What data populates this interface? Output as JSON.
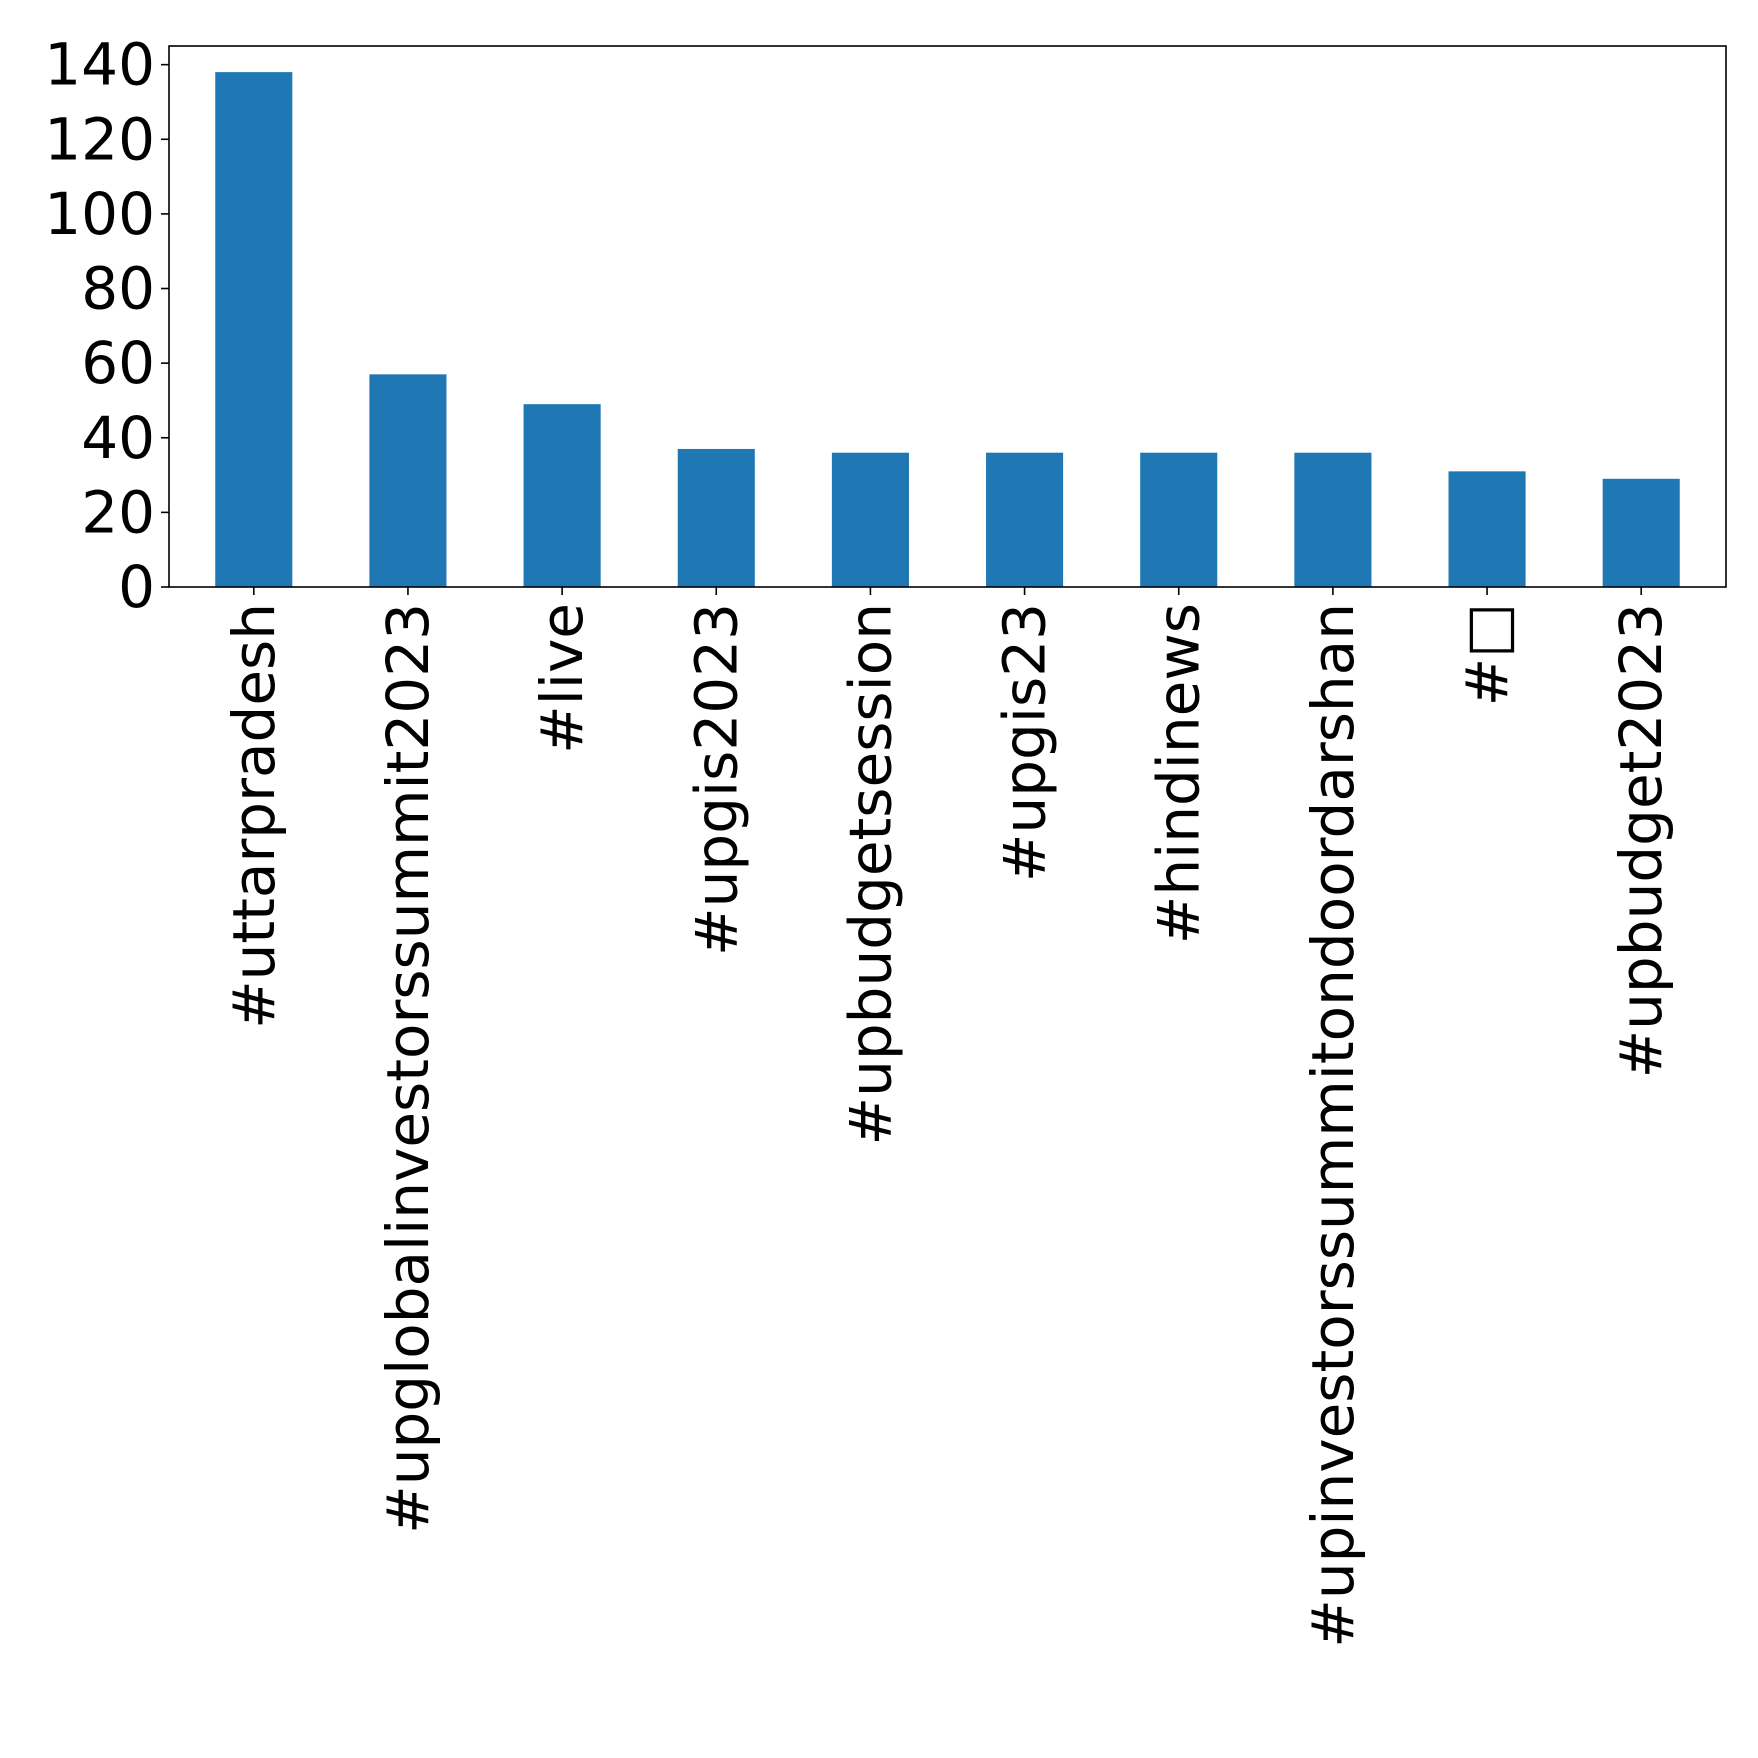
{
  "chart_data": {
    "type": "bar",
    "categories": [
      "#uttarpradesh",
      "#upglobalinvestorssummit2023",
      "#live",
      "#upgis2023",
      "#upbudgetsession",
      "#upgis23",
      "#hindinews",
      "#upinvestorssummitondoordarshan",
      "#□",
      "#upbudget2023"
    ],
    "values": [
      138,
      57,
      49,
      37,
      36,
      36,
      36,
      36,
      31,
      29
    ],
    "ylim": [
      0,
      145
    ],
    "yticks": [
      0,
      20,
      40,
      60,
      80,
      100,
      120,
      140
    ],
    "bar_color": "#1f77b4",
    "title": "",
    "xlabel": "",
    "ylabel": "",
    "grid": false,
    "legend": "none"
  }
}
